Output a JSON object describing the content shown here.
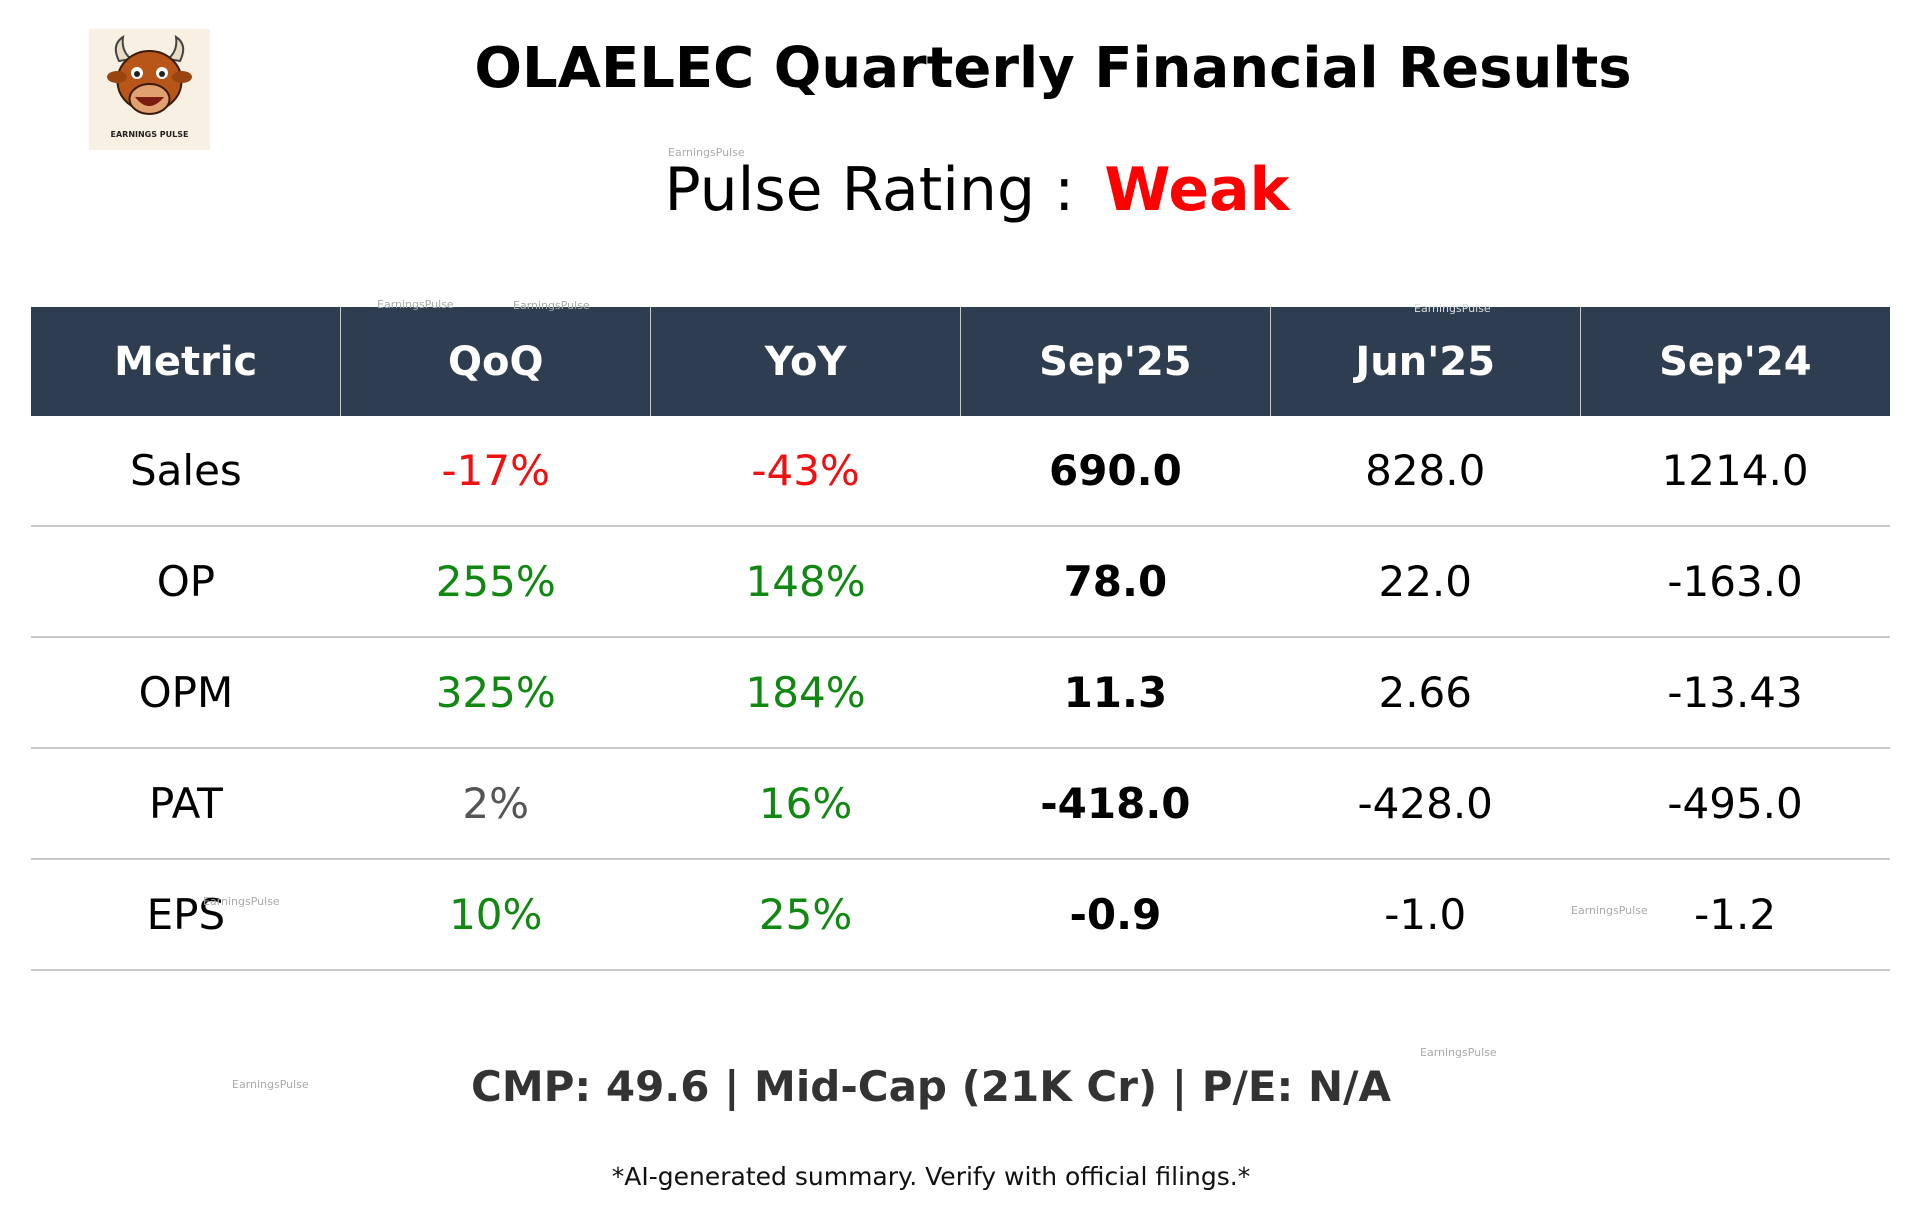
{
  "header": {
    "logo_text": "EARNINGS PULSE",
    "title": "OLAELEC Quarterly Financial Results",
    "rating_label": "Pulse Rating :",
    "rating_value": "Weak",
    "rating_color": "#ff0000"
  },
  "table": {
    "columns": [
      "Metric",
      "QoQ",
      "YoY",
      "Sep'25",
      "Jun'25",
      "Sep'24"
    ],
    "rows": [
      {
        "cells": [
          "Sales",
          "-17%",
          "-43%",
          "690.0",
          "828.0",
          "1214.0"
        ],
        "colors": [
          "#000000",
          "#ee1111",
          "#ee1111",
          "#000000",
          "#000000",
          "#000000"
        ]
      },
      {
        "cells": [
          "OP",
          "255%",
          "148%",
          "78.0",
          "22.0",
          "-163.0"
        ],
        "colors": [
          "#000000",
          "#118811",
          "#118811",
          "#000000",
          "#000000",
          "#000000"
        ]
      },
      {
        "cells": [
          "OPM",
          "325%",
          "184%",
          "11.3",
          "2.66",
          "-13.43"
        ],
        "colors": [
          "#000000",
          "#118811",
          "#118811",
          "#000000",
          "#000000",
          "#000000"
        ]
      },
      {
        "cells": [
          "PAT",
          "2%",
          "16%",
          "-418.0",
          "-428.0",
          "-495.0"
        ],
        "colors": [
          "#000000",
          "#555555",
          "#118811",
          "#000000",
          "#000000",
          "#000000"
        ]
      },
      {
        "cells": [
          "EPS",
          "10%",
          "25%",
          "-0.9",
          "-1.0",
          "-1.2"
        ],
        "colors": [
          "#000000",
          "#118811",
          "#118811",
          "#000000",
          "#000000",
          "#000000"
        ]
      }
    ]
  },
  "footer": {
    "summary": "CMP: 49.6 | Mid-Cap (21K Cr) | P/E: N/A",
    "disclaimer": "*AI-generated summary. Verify with official filings.*"
  },
  "watermarks": [
    "EarningsPulse",
    "EarningsPulse",
    "EarningsPulse",
    "EarningsPulse",
    "EarningsPulse",
    "EarningsPulse",
    "EarningsPulse",
    "EarningsPulse"
  ]
}
